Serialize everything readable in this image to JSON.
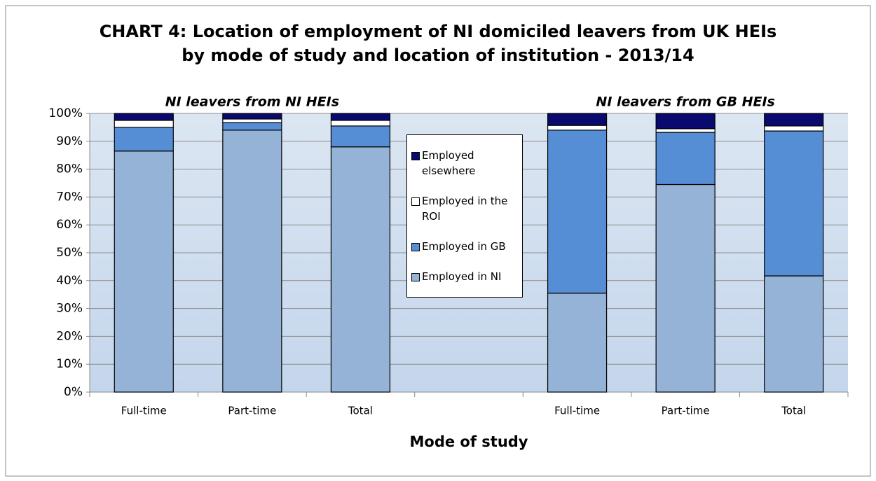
{
  "chart_data": {
    "type": "stacked_bar",
    "title": [
      "CHART 4: Location of employment of NI domiciled leavers from UK HEIs",
      "by mode of study and location of institution - 2013/14"
    ],
    "x_label": "Mode of study",
    "annotations": [
      "NI leavers from NI HEIs",
      "NI leavers from GB HEIs"
    ],
    "categories": [
      "Full-time",
      "Part-time",
      "Total",
      null,
      "Full-time",
      "Part-time",
      "Total"
    ],
    "series": [
      {
        "name": "Employed in NI",
        "color": "#95b3d7",
        "values": [
          86.5,
          94.0,
          88.0,
          null,
          35.5,
          74.5,
          41.7
        ]
      },
      {
        "name": "Employed in GB",
        "color": "#558ed5",
        "values": [
          8.5,
          2.7,
          7.5,
          null,
          58.5,
          18.7,
          52.0
        ]
      },
      {
        "name": "Employed in the ROI",
        "color": "#ffffff",
        "values": [
          2.5,
          1.3,
          2.0,
          null,
          1.7,
          1.3,
          1.8
        ]
      },
      {
        "name": "Employed elsewhere",
        "color": "#0a0a6e",
        "values": [
          2.5,
          2.0,
          2.5,
          null,
          4.3,
          5.5,
          4.5
        ]
      }
    ],
    "ylim": [
      0,
      100
    ],
    "yticks": [
      {
        "value": 0,
        "label": "0%"
      },
      {
        "value": 10,
        "label": "10%"
      },
      {
        "value": 20,
        "label": "20%"
      },
      {
        "value": 30,
        "label": "30%"
      },
      {
        "value": 40,
        "label": "40%"
      },
      {
        "value": 50,
        "label": "50%"
      },
      {
        "value": 60,
        "label": "60%"
      },
      {
        "value": 70,
        "label": "70%"
      },
      {
        "value": 80,
        "label": "80%"
      },
      {
        "value": 90,
        "label": "90%"
      },
      {
        "value": 100,
        "label": "100%"
      }
    ],
    "grid": true
  }
}
